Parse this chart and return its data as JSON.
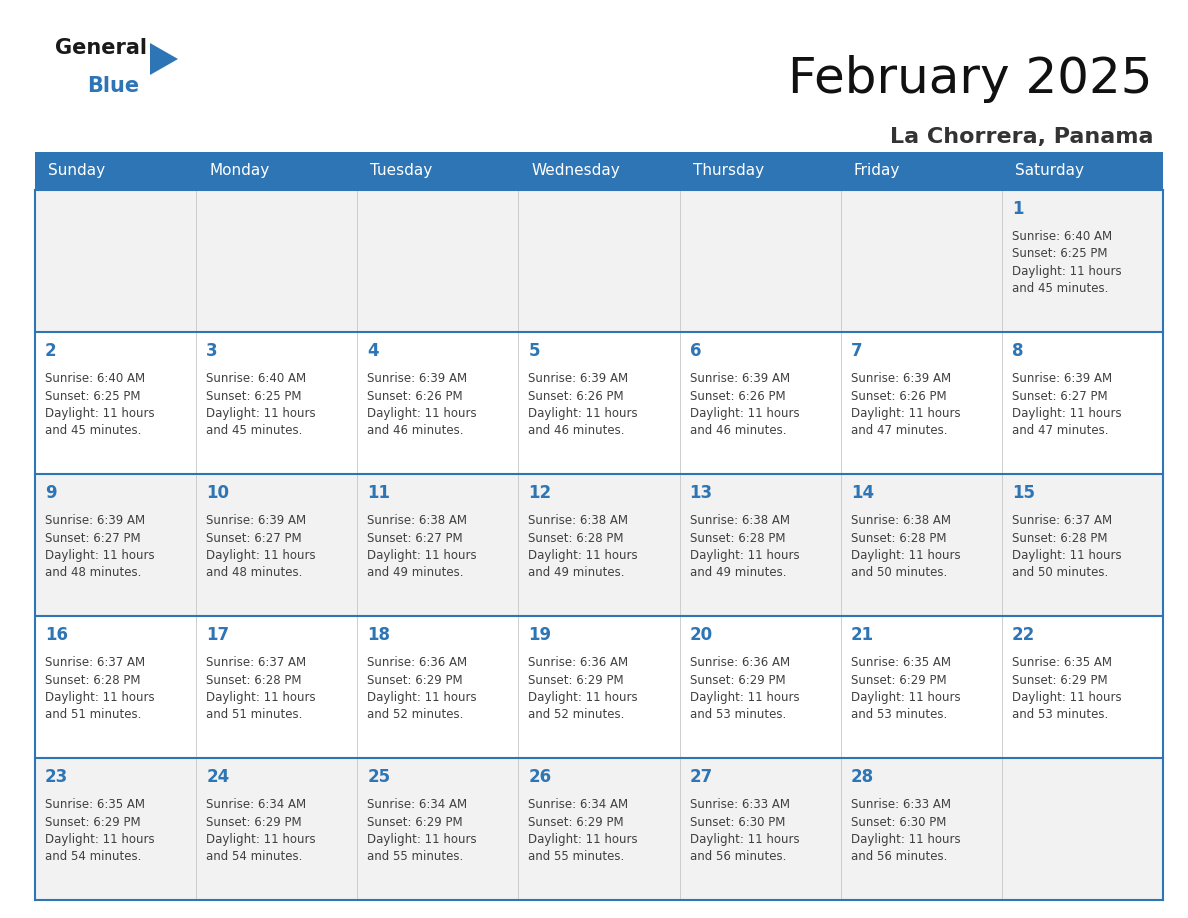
{
  "title": "February 2025",
  "subtitle": "La Chorrera, Panama",
  "days_of_week": [
    "Sunday",
    "Monday",
    "Tuesday",
    "Wednesday",
    "Thursday",
    "Friday",
    "Saturday"
  ],
  "header_bg": "#2E75B6",
  "header_text": "#FFFFFF",
  "cell_bg_odd": "#F2F2F2",
  "cell_bg_even": "#FFFFFF",
  "day_number_color": "#2E75B6",
  "text_color": "#404040",
  "calendar": [
    [
      null,
      null,
      null,
      null,
      null,
      null,
      {
        "day": "1",
        "sunrise": "6:40 AM",
        "sunset": "6:25 PM",
        "daylight1": "Daylight: 11 hours",
        "daylight2": "and 45 minutes."
      }
    ],
    [
      {
        "day": "2",
        "sunrise": "6:40 AM",
        "sunset": "6:25 PM",
        "daylight1": "Daylight: 11 hours",
        "daylight2": "and 45 minutes."
      },
      {
        "day": "3",
        "sunrise": "6:40 AM",
        "sunset": "6:25 PM",
        "daylight1": "Daylight: 11 hours",
        "daylight2": "and 45 minutes."
      },
      {
        "day": "4",
        "sunrise": "6:39 AM",
        "sunset": "6:26 PM",
        "daylight1": "Daylight: 11 hours",
        "daylight2": "and 46 minutes."
      },
      {
        "day": "5",
        "sunrise": "6:39 AM",
        "sunset": "6:26 PM",
        "daylight1": "Daylight: 11 hours",
        "daylight2": "and 46 minutes."
      },
      {
        "day": "6",
        "sunrise": "6:39 AM",
        "sunset": "6:26 PM",
        "daylight1": "Daylight: 11 hours",
        "daylight2": "and 46 minutes."
      },
      {
        "day": "7",
        "sunrise": "6:39 AM",
        "sunset": "6:26 PM",
        "daylight1": "Daylight: 11 hours",
        "daylight2": "and 47 minutes."
      },
      {
        "day": "8",
        "sunrise": "6:39 AM",
        "sunset": "6:27 PM",
        "daylight1": "Daylight: 11 hours",
        "daylight2": "and 47 minutes."
      }
    ],
    [
      {
        "day": "9",
        "sunrise": "6:39 AM",
        "sunset": "6:27 PM",
        "daylight1": "Daylight: 11 hours",
        "daylight2": "and 48 minutes."
      },
      {
        "day": "10",
        "sunrise": "6:39 AM",
        "sunset": "6:27 PM",
        "daylight1": "Daylight: 11 hours",
        "daylight2": "and 48 minutes."
      },
      {
        "day": "11",
        "sunrise": "6:38 AM",
        "sunset": "6:27 PM",
        "daylight1": "Daylight: 11 hours",
        "daylight2": "and 49 minutes."
      },
      {
        "day": "12",
        "sunrise": "6:38 AM",
        "sunset": "6:28 PM",
        "daylight1": "Daylight: 11 hours",
        "daylight2": "and 49 minutes."
      },
      {
        "day": "13",
        "sunrise": "6:38 AM",
        "sunset": "6:28 PM",
        "daylight1": "Daylight: 11 hours",
        "daylight2": "and 49 minutes."
      },
      {
        "day": "14",
        "sunrise": "6:38 AM",
        "sunset": "6:28 PM",
        "daylight1": "Daylight: 11 hours",
        "daylight2": "and 50 minutes."
      },
      {
        "day": "15",
        "sunrise": "6:37 AM",
        "sunset": "6:28 PM",
        "daylight1": "Daylight: 11 hours",
        "daylight2": "and 50 minutes."
      }
    ],
    [
      {
        "day": "16",
        "sunrise": "6:37 AM",
        "sunset": "6:28 PM",
        "daylight1": "Daylight: 11 hours",
        "daylight2": "and 51 minutes."
      },
      {
        "day": "17",
        "sunrise": "6:37 AM",
        "sunset": "6:28 PM",
        "daylight1": "Daylight: 11 hours",
        "daylight2": "and 51 minutes."
      },
      {
        "day": "18",
        "sunrise": "6:36 AM",
        "sunset": "6:29 PM",
        "daylight1": "Daylight: 11 hours",
        "daylight2": "and 52 minutes."
      },
      {
        "day": "19",
        "sunrise": "6:36 AM",
        "sunset": "6:29 PM",
        "daylight1": "Daylight: 11 hours",
        "daylight2": "and 52 minutes."
      },
      {
        "day": "20",
        "sunrise": "6:36 AM",
        "sunset": "6:29 PM",
        "daylight1": "Daylight: 11 hours",
        "daylight2": "and 53 minutes."
      },
      {
        "day": "21",
        "sunrise": "6:35 AM",
        "sunset": "6:29 PM",
        "daylight1": "Daylight: 11 hours",
        "daylight2": "and 53 minutes."
      },
      {
        "day": "22",
        "sunrise": "6:35 AM",
        "sunset": "6:29 PM",
        "daylight1": "Daylight: 11 hours",
        "daylight2": "and 53 minutes."
      }
    ],
    [
      {
        "day": "23",
        "sunrise": "6:35 AM",
        "sunset": "6:29 PM",
        "daylight1": "Daylight: 11 hours",
        "daylight2": "and 54 minutes."
      },
      {
        "day": "24",
        "sunrise": "6:34 AM",
        "sunset": "6:29 PM",
        "daylight1": "Daylight: 11 hours",
        "daylight2": "and 54 minutes."
      },
      {
        "day": "25",
        "sunrise": "6:34 AM",
        "sunset": "6:29 PM",
        "daylight1": "Daylight: 11 hours",
        "daylight2": "and 55 minutes."
      },
      {
        "day": "26",
        "sunrise": "6:34 AM",
        "sunset": "6:29 PM",
        "daylight1": "Daylight: 11 hours",
        "daylight2": "and 55 minutes."
      },
      {
        "day": "27",
        "sunrise": "6:33 AM",
        "sunset": "6:30 PM",
        "daylight1": "Daylight: 11 hours",
        "daylight2": "and 56 minutes."
      },
      {
        "day": "28",
        "sunrise": "6:33 AM",
        "sunset": "6:30 PM",
        "daylight1": "Daylight: 11 hours",
        "daylight2": "and 56 minutes."
      },
      null
    ]
  ]
}
